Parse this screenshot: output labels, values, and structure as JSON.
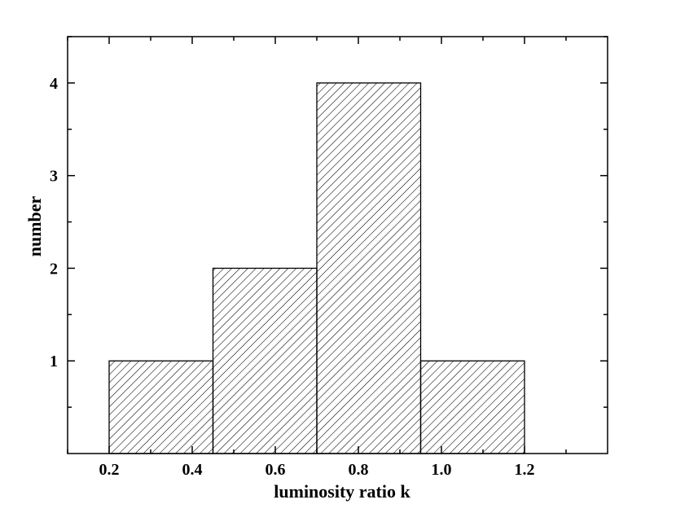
{
  "chart_data": {
    "type": "bar",
    "subtype": "histogram",
    "bins": [
      {
        "x0": 0.2,
        "x1": 0.45,
        "value": 1
      },
      {
        "x0": 0.45,
        "x1": 0.7,
        "value": 2
      },
      {
        "x0": 0.7,
        "x1": 0.95,
        "value": 4
      },
      {
        "x0": 0.95,
        "x1": 1.2,
        "value": 1
      }
    ],
    "xlabel": "luminosity ratio k",
    "ylabel": "number",
    "xlim": [
      0.1,
      1.4
    ],
    "ylim": [
      0,
      4.5
    ],
    "x_ticks": [
      {
        "value": 0.2,
        "label": "0.2"
      },
      {
        "value": 0.4,
        "label": "0.4"
      },
      {
        "value": 0.6,
        "label": "0.6"
      },
      {
        "value": 0.8,
        "label": "0.8"
      },
      {
        "value": 1.0,
        "label": "1.0"
      },
      {
        "value": 1.2,
        "label": "1.2"
      }
    ],
    "y_ticks": [
      {
        "value": 1,
        "label": "1"
      },
      {
        "value": 2,
        "label": "2"
      },
      {
        "value": 3,
        "label": "3"
      },
      {
        "value": 4,
        "label": "4"
      }
    ],
    "fill": "diagonal-hatch",
    "grid": false,
    "colors": {
      "line": "#000000",
      "background": "#ffffff"
    }
  }
}
